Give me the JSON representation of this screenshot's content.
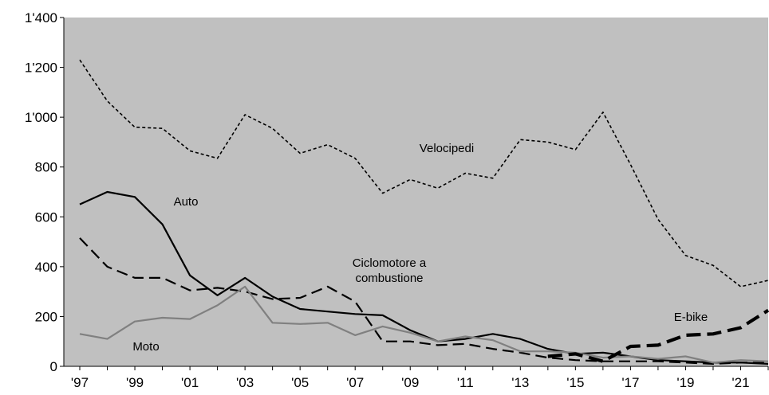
{
  "chart_data": {
    "type": "line",
    "x": [
      1997,
      1998,
      1999,
      2000,
      2001,
      2002,
      2003,
      2004,
      2005,
      2006,
      2007,
      2008,
      2009,
      2010,
      2011,
      2012,
      2013,
      2014,
      2015,
      2016,
      2017,
      2018,
      2019,
      2020,
      2021,
      2022
    ],
    "x_tick_labels": [
      "'97",
      "'99",
      "'01",
      "'03",
      "'05",
      "'07",
      "'09",
      "'11",
      "'13",
      "'15",
      "'17",
      "'19",
      "'21"
    ],
    "x_tick_years": [
      1997,
      1999,
      2001,
      2003,
      2005,
      2007,
      2009,
      2011,
      2013,
      2015,
      2017,
      2019,
      2021
    ],
    "ylim": [
      0,
      1400
    ],
    "y_ticks": [
      0,
      200,
      400,
      600,
      800,
      1000,
      1200,
      1400
    ],
    "y_tick_labels": [
      "0",
      "200",
      "400",
      "600",
      "800",
      "1'000",
      "1'200",
      "1'400"
    ],
    "grid": false,
    "legend": "none (series labelled directly on the plot)",
    "title": "",
    "xlabel": "",
    "ylabel": "",
    "plot_background": "#c0c0c0",
    "series": [
      {
        "name": "Velocipedi",
        "label_lines": [
          "Velocipedi"
        ],
        "color": "#000000",
        "style": "dotted",
        "values": [
          1230,
          1065,
          960,
          955,
          865,
          835,
          1010,
          955,
          855,
          890,
          835,
          695,
          750,
          715,
          775,
          755,
          910,
          900,
          870,
          1020,
          810,
          590,
          445,
          405,
          320,
          345
        ]
      },
      {
        "name": "Auto",
        "label_lines": [
          "Auto"
        ],
        "color": "#000000",
        "style": "solid",
        "values": [
          650,
          700,
          680,
          570,
          365,
          285,
          355,
          280,
          230,
          220,
          210,
          205,
          145,
          100,
          110,
          130,
          110,
          70,
          50,
          55,
          40,
          25,
          20,
          15,
          15,
          10
        ]
      },
      {
        "name": "Ciclomotore a combustione",
        "label_lines": [
          "Ciclomotore a",
          "combustione"
        ],
        "color": "#000000",
        "style": "dashed",
        "values": [
          515,
          400,
          355,
          355,
          305,
          315,
          300,
          270,
          275,
          320,
          260,
          100,
          100,
          85,
          90,
          70,
          55,
          35,
          25,
          20,
          20,
          20,
          15,
          10,
          15,
          15
        ]
      },
      {
        "name": "Moto",
        "label_lines": [
          "Moto"
        ],
        "color": "#808080",
        "style": "solid",
        "values": [
          130,
          110,
          180,
          195,
          190,
          245,
          320,
          175,
          170,
          175,
          125,
          160,
          135,
          100,
          120,
          105,
          60,
          60,
          55,
          35,
          40,
          30,
          40,
          15,
          25,
          20
        ]
      },
      {
        "name": "E-bike",
        "label_lines": [
          "E-bike"
        ],
        "color": "#000000",
        "style": "bold-dashed",
        "start_year": 2014,
        "values": [
          null,
          null,
          null,
          null,
          null,
          null,
          null,
          null,
          null,
          null,
          null,
          null,
          null,
          null,
          null,
          null,
          null,
          40,
          50,
          20,
          80,
          85,
          125,
          130,
          155,
          225
        ]
      }
    ]
  }
}
